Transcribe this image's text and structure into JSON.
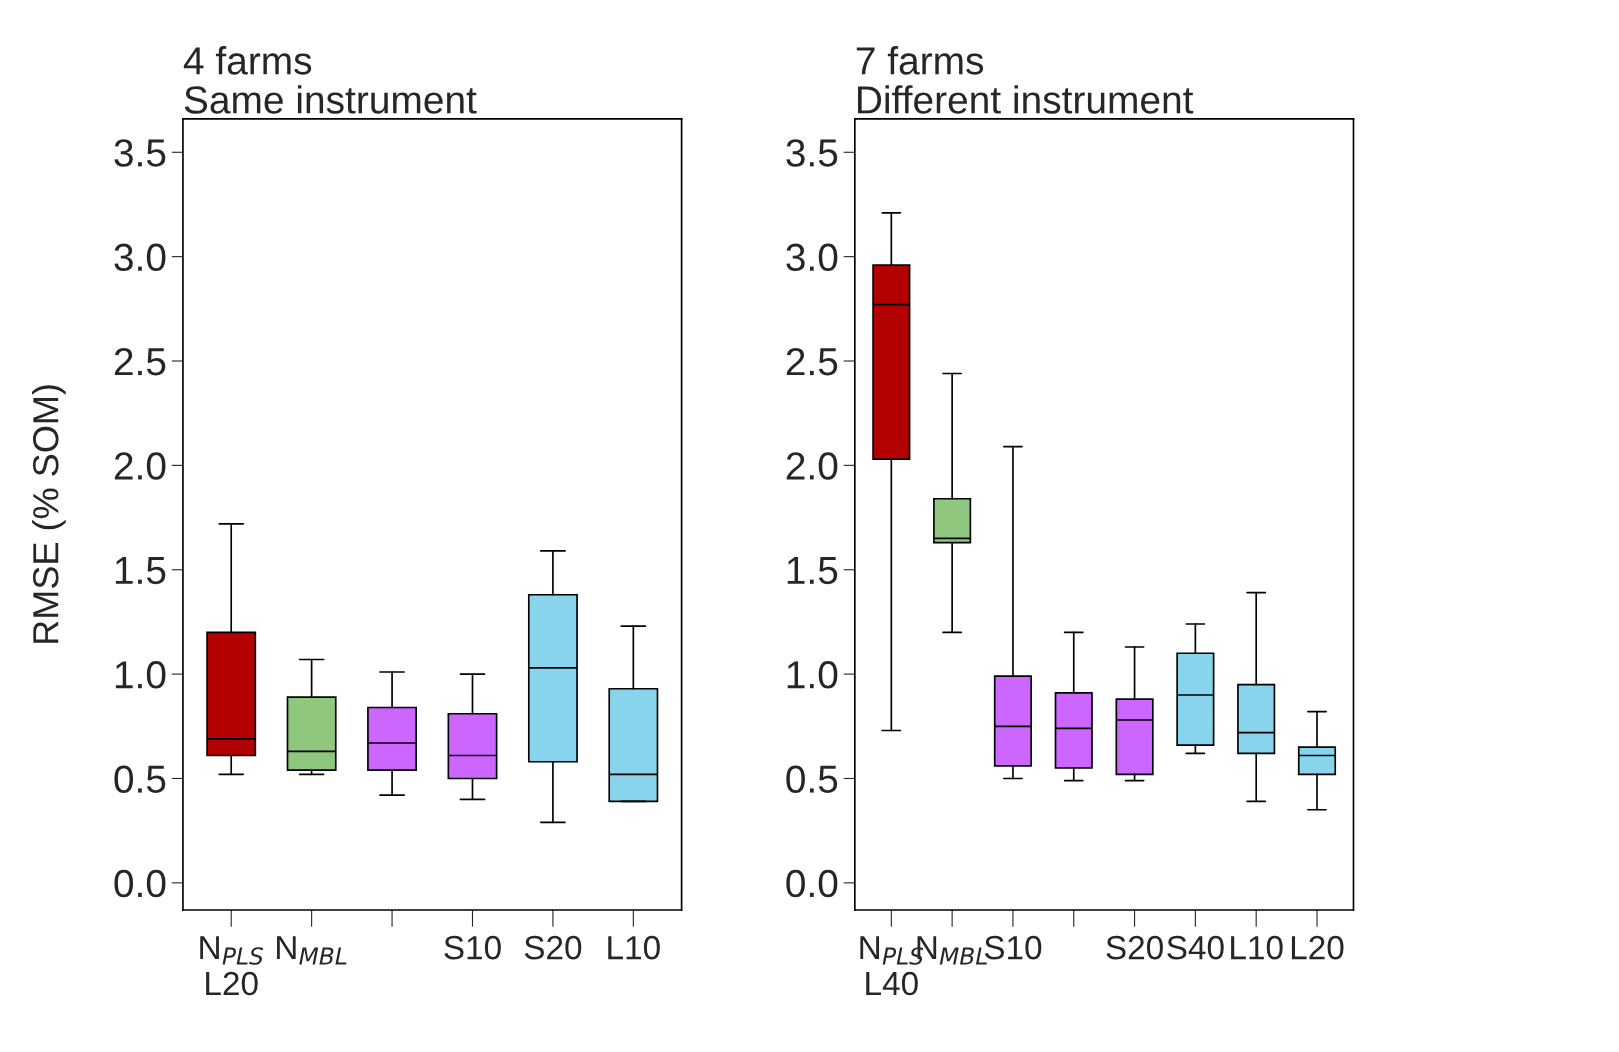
{
  "chart_data": [
    {
      "type": "box",
      "title": "4 farms\nSame instrument",
      "ylabel": "RMSE (% SOM)",
      "categories": [
        "N$_{PLS}$\nL20",
        "N$_{MBL}$",
        null,
        "S10",
        "S20",
        "L10"
      ],
      "colors": [
        "#b30000",
        "#8fc77e",
        "#cc66ff",
        "#cc66ff",
        "#87d4ec",
        "#87d4ec"
      ],
      "boxes": [
        {
          "low": 0.52,
          "q1": 0.61,
          "median": 0.69,
          "q3": 1.2,
          "high": 1.72
        },
        {
          "low": 0.52,
          "q1": 0.54,
          "median": 0.63,
          "q3": 0.89,
          "high": 1.07
        },
        {
          "low": 0.42,
          "q1": 0.54,
          "median": 0.67,
          "q3": 0.84,
          "high": 1.01
        },
        {
          "low": 0.4,
          "q1": 0.5,
          "median": 0.61,
          "q3": 0.81,
          "high": 1.0
        },
        {
          "low": 0.29,
          "q1": 0.58,
          "median": 1.03,
          "q3": 1.38,
          "high": 1.59
        },
        {
          "low": 0.39,
          "q1": 0.39,
          "median": 0.52,
          "q3": 0.93,
          "high": 1.23
        }
      ],
      "ylim": [
        -0.13,
        3.66
      ],
      "yticks": [
        {
          "value": 0,
          "label": "0.0"
        },
        {
          "value": 0.5,
          "label": "0.5"
        },
        {
          "value": 1,
          "label": "1.0"
        },
        {
          "value": 1.5,
          "label": "1.5"
        },
        {
          "value": 2,
          "label": "2.0"
        },
        {
          "value": 2.5,
          "label": "2.5"
        },
        {
          "value": 3,
          "label": "3.0"
        },
        {
          "value": 3.5,
          "label": "3.5"
        }
      ],
      "grid": false
    },
    {
      "type": "box",
      "title": "7 farms\nDifferent instrument",
      "categories": [
        "N$_{PLS}$\nL40",
        "N$_{MBL}$",
        "S10",
        null,
        "S20",
        "S40",
        "L10",
        "L20"
      ],
      "colors": [
        "#b30000",
        "#8fc77e",
        "#cc66ff",
        "#cc66ff",
        "#cc66ff",
        "#87d4ec",
        "#87d4ec",
        "#87d4ec"
      ],
      "boxes": [
        {
          "low": 0.73,
          "q1": 2.03,
          "median": 2.77,
          "q3": 2.96,
          "high": 3.21
        },
        {
          "low": 1.2,
          "q1": 1.63,
          "median": 1.65,
          "q3": 1.84,
          "high": 2.44
        },
        {
          "low": 0.5,
          "q1": 0.56,
          "median": 0.75,
          "q3": 0.99,
          "high": 2.09
        },
        {
          "low": 0.49,
          "q1": 0.55,
          "median": 0.74,
          "q3": 0.91,
          "high": 1.2
        },
        {
          "low": 0.49,
          "q1": 0.52,
          "median": 0.78,
          "q3": 0.88,
          "high": 1.13
        },
        {
          "low": 0.62,
          "q1": 0.66,
          "median": 0.9,
          "q3": 1.1,
          "high": 1.24
        },
        {
          "low": 0.39,
          "q1": 0.62,
          "median": 0.72,
          "q3": 0.95,
          "high": 1.39
        },
        {
          "low": 0.35,
          "q1": 0.52,
          "median": 0.61,
          "q3": 0.65,
          "high": 0.82
        }
      ],
      "ylim": [
        -0.13,
        3.66
      ],
      "yticks": [
        {
          "value": 0,
          "label": "0.0"
        },
        {
          "value": 0.5,
          "label": "0.5"
        },
        {
          "value": 1,
          "label": "1.0"
        },
        {
          "value": 1.5,
          "label": "1.5"
        },
        {
          "value": 2,
          "label": "2.0"
        },
        {
          "value": 2.5,
          "label": "2.5"
        },
        {
          "value": 3,
          "label": "3.0"
        },
        {
          "value": 3.5,
          "label": "3.5"
        }
      ],
      "grid": false
    }
  ]
}
